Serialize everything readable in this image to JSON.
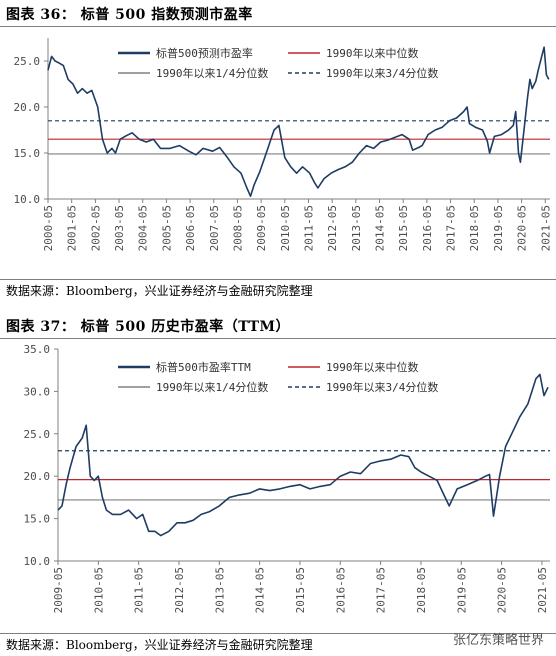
{
  "figure1": {
    "title": "图表 36： 标普 500 指数预测市盈率",
    "source": "数据来源：Bloomberg，兴业证券经济与金融研究院整理"
  },
  "figure2": {
    "title": "图表 37： 标普 500 历史市盈率（TTM）",
    "source": "数据来源：Bloomberg，兴业证券经济与金融研究院整理"
  },
  "watermark": "张亿东策略世界",
  "chart_data": [
    {
      "type": "line",
      "title": "",
      "x_start": 2000.35,
      "x_end": 2021.55,
      "x_ticks": [
        "2000-05",
        "2001-05",
        "2002-05",
        "2003-05",
        "2004-05",
        "2005-05",
        "2006-05",
        "2007-05",
        "2008-05",
        "2009-05",
        "2010-05",
        "2011-05",
        "2012-05",
        "2013-05",
        "2014-05",
        "2015-05",
        "2016-05",
        "2017-05",
        "2018-05",
        "2019-05",
        "2020-05",
        "2021-05"
      ],
      "y_ticks": [
        "10.0",
        "15.0",
        "20.0",
        "25.0"
      ],
      "ylim": [
        10,
        27.5
      ],
      "grid": false,
      "legend": "top-right",
      "colors": {
        "series": "#1f3c63",
        "median": "#c0252b",
        "q1": "#808080",
        "q3": "#1f3c63"
      },
      "series": [
        {
          "name": "标普500预测市盈率",
          "x": [
            2000.35,
            2000.5,
            2000.65,
            2000.8,
            2001.0,
            2001.2,
            2001.4,
            2001.6,
            2001.8,
            2002.0,
            2002.2,
            2002.45,
            2002.65,
            2002.85,
            2003.05,
            2003.2,
            2003.4,
            2003.6,
            2003.9,
            2004.2,
            2004.5,
            2004.8,
            2005.1,
            2005.5,
            2005.9,
            2006.3,
            2006.6,
            2006.9,
            2007.3,
            2007.6,
            2007.9,
            2008.2,
            2008.5,
            2008.75,
            2008.9,
            2009.05,
            2009.3,
            2009.5,
            2009.7,
            2009.9,
            2010.1,
            2010.35,
            2010.6,
            2010.85,
            2011.1,
            2011.4,
            2011.6,
            2011.75,
            2012.0,
            2012.3,
            2012.6,
            2012.9,
            2013.2,
            2013.5,
            2013.8,
            2014.1,
            2014.4,
            2014.7,
            2015.0,
            2015.3,
            2015.6,
            2015.75,
            2016.0,
            2016.15,
            2016.4,
            2016.7,
            2017.0,
            2017.3,
            2017.6,
            2017.9,
            2018.05,
            2018.15,
            2018.4,
            2018.7,
            2018.9,
            2019.0,
            2019.2,
            2019.5,
            2019.8,
            2020.0,
            2020.1,
            2020.22,
            2020.3,
            2020.45,
            2020.6,
            2020.7,
            2020.8,
            2020.95,
            2021.05,
            2021.2,
            2021.3,
            2021.4,
            2021.5
          ],
          "values": [
            24.0,
            25.5,
            25.0,
            24.8,
            24.5,
            23.0,
            22.5,
            21.5,
            22.0,
            21.5,
            21.8,
            20.0,
            16.5,
            15.0,
            15.5,
            15.0,
            16.5,
            16.8,
            17.2,
            16.5,
            16.2,
            16.5,
            15.5,
            15.5,
            15.8,
            15.2,
            14.8,
            15.5,
            15.2,
            15.6,
            14.6,
            13.5,
            12.8,
            11.2,
            10.3,
            11.5,
            13.0,
            14.5,
            16.0,
            17.5,
            18.0,
            14.5,
            13.5,
            12.8,
            13.5,
            12.8,
            11.8,
            11.2,
            12.2,
            12.8,
            13.2,
            13.5,
            14.0,
            15.0,
            15.8,
            15.5,
            16.2,
            16.4,
            16.7,
            17.0,
            16.5,
            15.3,
            15.6,
            15.8,
            17.0,
            17.5,
            17.8,
            18.5,
            18.8,
            19.5,
            20.0,
            18.2,
            17.8,
            17.5,
            16.3,
            15.0,
            16.8,
            17.0,
            17.5,
            18.0,
            19.5,
            15.0,
            14.0,
            17.5,
            21.0,
            23.0,
            22.0,
            22.8,
            24.0,
            25.5,
            26.5,
            23.5,
            23.0
          ]
        }
      ],
      "reference_lines": [
        {
          "name": "1990年以来中位数",
          "value": 16.5,
          "style": "solid"
        },
        {
          "name": "1990年以来1/4分位数",
          "value": 14.9,
          "style": "solid"
        },
        {
          "name": "1990年以来3/4分位数",
          "value": 18.5,
          "style": "dashed"
        }
      ]
    },
    {
      "type": "line",
      "title": "",
      "x_start": 2009.35,
      "x_end": 2021.55,
      "x_ticks": [
        "2009-05",
        "2010-05",
        "2011-05",
        "2012-05",
        "2013-05",
        "2014-05",
        "2015-05",
        "2016-05",
        "2017-05",
        "2018-05",
        "2019-05",
        "2020-05",
        "2021-05"
      ],
      "y_ticks": [
        "10.0",
        "15.0",
        "20.0",
        "25.0",
        "30.0",
        "35.0"
      ],
      "ylim": [
        10,
        35
      ],
      "grid": false,
      "legend": "top-right",
      "colors": {
        "series": "#1f3c63",
        "median": "#c0252b",
        "q1": "#808080",
        "q3": "#1f3c63"
      },
      "series": [
        {
          "name": "标普500市盈率TTM",
          "x": [
            2009.35,
            2009.45,
            2009.55,
            2009.65,
            2009.8,
            2009.95,
            2010.05,
            2010.15,
            2010.25,
            2010.35,
            2010.45,
            2010.55,
            2010.7,
            2010.9,
            2011.1,
            2011.3,
            2011.45,
            2011.6,
            2011.75,
            2011.9,
            2012.1,
            2012.3,
            2012.5,
            2012.7,
            2012.9,
            2013.1,
            2013.35,
            2013.6,
            2013.85,
            2014.1,
            2014.35,
            2014.6,
            2014.85,
            2015.1,
            2015.35,
            2015.6,
            2015.85,
            2016.1,
            2016.35,
            2016.6,
            2016.85,
            2017.1,
            2017.35,
            2017.6,
            2017.85,
            2018.05,
            2018.2,
            2018.35,
            2018.55,
            2018.75,
            2018.95,
            2019.05,
            2019.25,
            2019.5,
            2019.75,
            2019.95,
            2020.05,
            2020.15,
            2020.22,
            2020.3,
            2020.45,
            2020.6,
            2020.8,
            2021.0,
            2021.1,
            2021.2,
            2021.3,
            2021.4,
            2021.5
          ],
          "values": [
            16.0,
            16.5,
            19.0,
            21.0,
            23.5,
            24.5,
            26.0,
            20.0,
            19.5,
            20.0,
            17.5,
            16.0,
            15.5,
            15.5,
            16.0,
            15.0,
            15.5,
            13.5,
            13.5,
            13.0,
            13.5,
            14.5,
            14.5,
            14.8,
            15.5,
            15.8,
            16.5,
            17.5,
            17.8,
            18.0,
            18.5,
            18.3,
            18.5,
            18.8,
            19.0,
            18.5,
            18.8,
            19.0,
            20.0,
            20.5,
            20.3,
            21.5,
            21.8,
            22.0,
            22.5,
            22.3,
            21.0,
            20.5,
            20.0,
            19.5,
            17.5,
            16.5,
            18.5,
            19.0,
            19.5,
            20.0,
            20.2,
            15.3,
            17.5,
            20.0,
            23.5,
            25.0,
            27.0,
            28.5,
            30.0,
            31.5,
            32.0,
            29.5,
            30.5
          ]
        }
      ],
      "reference_lines": [
        {
          "name": "1990年以来中位数",
          "value": 19.6,
          "style": "solid"
        },
        {
          "name": "1990年以来1/4分位数",
          "value": 17.2,
          "style": "solid"
        },
        {
          "name": "1990年以来3/4分位数",
          "value": 23.0,
          "style": "dashed"
        }
      ]
    }
  ]
}
